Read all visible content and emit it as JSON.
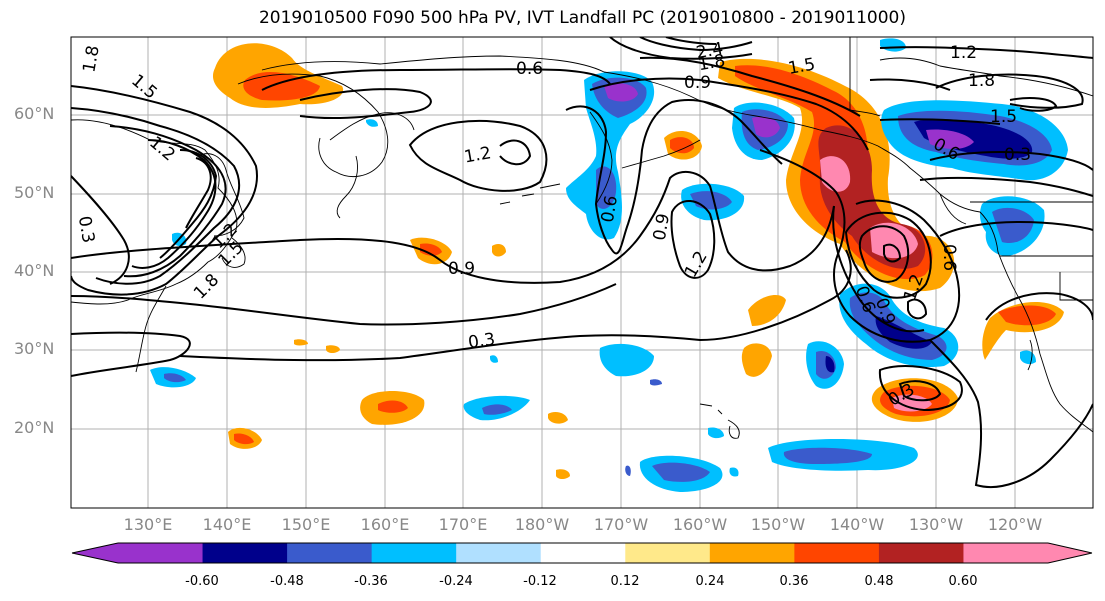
{
  "title": "2019010500 F090 500 hPa PV, IVT Landfall PC (2019010800 - 2019011000)",
  "lat_labels": [
    "60°N",
    "50°N",
    "40°N",
    "30°N",
    "20°N"
  ],
  "lon_labels": [
    "130°E",
    "140°E",
    "150°E",
    "160°E",
    "170°E",
    "180°W",
    "170°W",
    "160°W",
    "150°W",
    "140°W",
    "130°W",
    "120°W"
  ],
  "colorbar": {
    "ticks": [
      "-0.60",
      "-0.48",
      "-0.36",
      "-0.24",
      "-0.12",
      "0.12",
      "0.24",
      "0.36",
      "0.48",
      "0.60"
    ],
    "colors": [
      "#9932CC",
      "#00008B",
      "#3A5BCC",
      "#00BFFF",
      "#B0E0FF",
      "#FFFFFF",
      "#FFE98A",
      "#FFA500",
      "#FF4500",
      "#B22222",
      "#FF88B0"
    ]
  },
  "contour_labels": [
    "1.8",
    "1.5",
    "1.2",
    "0.6",
    "0.9",
    "2.4",
    "1.8",
    "1.5",
    "1.2",
    "1.8",
    "1.5",
    "1.2",
    "0.3",
    "1.2",
    "1.5",
    "1.8",
    "0.9",
    "0.6",
    "0.9",
    "1.2",
    "0.6",
    "0.3",
    "0.9",
    "0.6",
    "1.2",
    "0.3",
    "0.6",
    "0.3"
  ]
}
